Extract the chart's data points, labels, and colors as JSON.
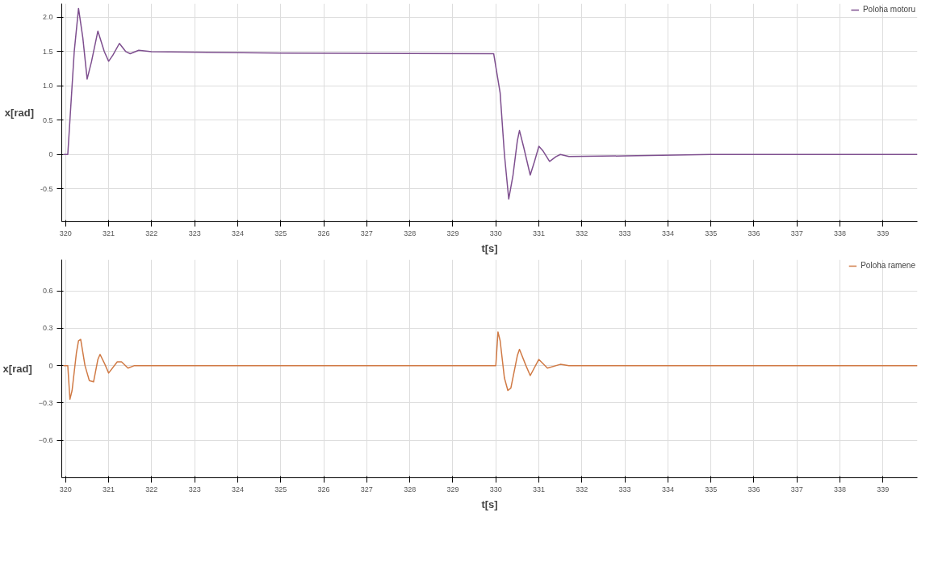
{
  "chart_data": [
    {
      "type": "line",
      "xlabel": "t[s]",
      "ylabel": "x[rad]",
      "xlim": [
        319.91,
        339.8
      ],
      "ylim": [
        -0.98,
        2.2
      ],
      "xticks": [
        320,
        321,
        322,
        323,
        324,
        325,
        326,
        327,
        328,
        329,
        330,
        331,
        332,
        333,
        334,
        335,
        336,
        337,
        338,
        339
      ],
      "yticks": [
        {
          "value": -0.5,
          "label": "-0.5"
        },
        {
          "value": 0,
          "label": "0"
        },
        {
          "value": 0.5,
          "label": "0.5"
        },
        {
          "value": 1.0,
          "label": "1.0"
        },
        {
          "value": 1.5,
          "label": "1.5"
        },
        {
          "value": 2.0,
          "label": "2.0"
        }
      ],
      "grid": true,
      "legend": "top right",
      "line_style": "solid",
      "series": [
        {
          "name": "Poloha motoru",
          "color": "#7e4f8f",
          "x": [
            319.95,
            320.05,
            320.1,
            320.2,
            320.3,
            320.4,
            320.5,
            320.6,
            320.75,
            320.9,
            321.0,
            321.1,
            321.25,
            321.4,
            321.5,
            321.7,
            322,
            325,
            329.95,
            330.1,
            330.2,
            330.3,
            330.4,
            330.5,
            330.55,
            330.65,
            330.8,
            330.9,
            331.0,
            331.1,
            331.25,
            331.4,
            331.5,
            331.7,
            333,
            335,
            339.8
          ],
          "values": [
            0,
            0,
            0.5,
            1.5,
            2.13,
            1.7,
            1.1,
            1.35,
            1.8,
            1.5,
            1.36,
            1.45,
            1.62,
            1.5,
            1.47,
            1.52,
            1.5,
            1.48,
            1.47,
            0.9,
            0,
            -0.65,
            -0.3,
            0.2,
            0.35,
            0.1,
            -0.3,
            -0.1,
            0.12,
            0.05,
            -0.1,
            -0.03,
            0.0,
            -0.03,
            -0.02,
            0,
            0
          ]
        }
      ]
    },
    {
      "type": "line",
      "xlabel": "t[s]",
      "ylabel": "x[rad]",
      "xlim": [
        319.91,
        339.8
      ],
      "ylim": [
        -0.9,
        0.85
      ],
      "xticks": [
        320,
        321,
        322,
        323,
        324,
        325,
        326,
        327,
        328,
        329,
        330,
        331,
        332,
        333,
        334,
        335,
        336,
        337,
        338,
        339
      ],
      "yticks": [
        -0.6,
        -0.3,
        0,
        0.3,
        0.6
      ],
      "grid": true,
      "legend": "top right",
      "line_style": "solid",
      "series": [
        {
          "name": "Poloha ramene",
          "color": "#d07a45",
          "x": [
            319.95,
            320.05,
            320.1,
            320.15,
            320.25,
            320.3,
            320.35,
            320.45,
            320.55,
            320.65,
            320.75,
            320.8,
            320.9,
            321.0,
            321.2,
            321.3,
            321.45,
            321.6,
            329.95,
            330.0,
            330.05,
            330.1,
            330.2,
            330.28,
            330.35,
            330.5,
            330.55,
            330.7,
            330.8,
            331.0,
            331.2,
            331.5,
            331.7,
            339.8
          ],
          "values": [
            0,
            0,
            -0.27,
            -0.2,
            0.1,
            0.2,
            0.21,
            0,
            -0.12,
            -0.13,
            0.05,
            0.09,
            0.02,
            -0.06,
            0.03,
            0.03,
            -0.02,
            0,
            0,
            0,
            0.27,
            0.2,
            -0.1,
            -0.2,
            -0.18,
            0.08,
            0.13,
            0,
            -0.08,
            0.05,
            -0.02,
            0.01,
            0,
            0
          ]
        }
      ]
    }
  ]
}
